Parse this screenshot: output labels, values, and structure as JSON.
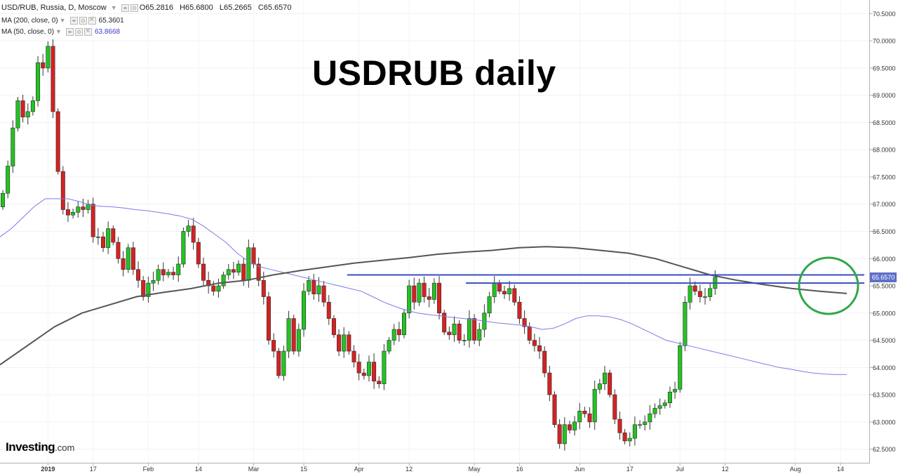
{
  "header": {
    "symbol": "USD/RUB, Russia, D, Moscow",
    "open": "O65.2816",
    "high": "H65.6800",
    "low": "L65.2665",
    "close": "C65.6570",
    "ma200_label": "MA (200, close, 0)",
    "ma200_value": "65.3601",
    "ma50_label": "MA (50, close, 0)",
    "ma50_value": "63.8668"
  },
  "title": "USDRUB daily",
  "logo": {
    "brand": "Investing",
    "domain": ".com"
  },
  "price_badge": "65.6570",
  "colors": {
    "up": "#22c322",
    "down": "#d42222",
    "ma200": "#555555",
    "ma50": "#7b7bea",
    "resistance": "#3a4cc0",
    "circle": "#2ea84a",
    "badge": "#5f6fc9"
  },
  "chart_data": {
    "type": "candlestick",
    "title": "USDRUB daily",
    "ylim": [
      62.25,
      70.75
    ],
    "y_ticks": [
      "62.5000",
      "63.0000",
      "63.5000",
      "64.0000",
      "64.5000",
      "65.0000",
      "65.5000",
      "66.0000",
      "66.5000",
      "67.0000",
      "67.5000",
      "68.0000",
      "68.5000",
      "69.0000",
      "69.5000",
      "70.0000",
      "70.5000"
    ],
    "x_ticks": [
      {
        "i": 9,
        "label": "2019",
        "bold": true
      },
      {
        "i": 18,
        "label": "17"
      },
      {
        "i": 29,
        "label": "Feb"
      },
      {
        "i": 39,
        "label": "14"
      },
      {
        "i": 50,
        "label": "Mar"
      },
      {
        "i": 60,
        "label": "15"
      },
      {
        "i": 71,
        "label": "Apr"
      },
      {
        "i": 81,
        "label": "12"
      },
      {
        "i": 94,
        "label": "May"
      },
      {
        "i": 103,
        "label": "16"
      },
      {
        "i": 115,
        "label": "Jun"
      },
      {
        "i": 125,
        "label": "17"
      },
      {
        "i": 135,
        "label": "Jul"
      },
      {
        "i": 144,
        "label": "12"
      },
      {
        "i": 158,
        "label": "Aug"
      },
      {
        "i": 167,
        "label": "14"
      }
    ],
    "closes": [
      67.2,
      67.7,
      68.4,
      68.9,
      68.6,
      68.7,
      68.9,
      69.6,
      69.5,
      69.9,
      68.7,
      67.6,
      66.9,
      66.8,
      66.85,
      66.95,
      66.9,
      67.0,
      66.4,
      66.4,
      66.2,
      66.55,
      66.3,
      66.0,
      65.8,
      66.2,
      65.8,
      65.6,
      65.3,
      65.55,
      65.6,
      65.8,
      65.7,
      65.75,
      65.7,
      65.9,
      66.5,
      66.6,
      66.3,
      65.9,
      65.6,
      65.5,
      65.4,
      65.5,
      65.7,
      65.8,
      65.75,
      65.9,
      65.6,
      66.2,
      65.9,
      65.6,
      65.3,
      64.5,
      64.3,
      63.85,
      64.3,
      64.9,
      64.3,
      64.7,
      65.4,
      65.6,
      65.35,
      65.5,
      65.2,
      64.9,
      64.6,
      64.3,
      64.6,
      64.3,
      64.1,
      63.9,
      63.85,
      64.1,
      63.75,
      63.7,
      64.3,
      64.5,
      64.7,
      64.6,
      65.0,
      65.5,
      65.2,
      65.55,
      65.3,
      65.25,
      65.55,
      65.0,
      64.65,
      64.6,
      64.8,
      64.5,
      64.5,
      64.9,
      64.5,
      64.7,
      65.0,
      65.3,
      65.55,
      65.4,
      65.35,
      65.45,
      65.2,
      64.9,
      64.75,
      64.5,
      64.4,
      64.3,
      63.9,
      63.5,
      62.95,
      62.6,
      62.95,
      62.85,
      63.0,
      63.2,
      63.15,
      63.0,
      63.6,
      63.7,
      63.9,
      63.5,
      63.05,
      62.8,
      62.65,
      62.7,
      62.95,
      62.95,
      63.0,
      63.15,
      63.25,
      63.3,
      63.35,
      63.55,
      63.6,
      64.4,
      65.2,
      65.5,
      65.4,
      65.3,
      65.3,
      65.45,
      65.657
    ],
    "ma50": [
      66.4,
      66.55,
      66.75,
      66.95,
      67.1,
      67.1,
      67.1,
      67.05,
      66.98,
      66.96,
      66.95,
      66.93,
      66.9,
      66.88,
      66.85,
      66.82,
      66.78,
      66.72,
      66.6,
      66.45,
      66.3,
      66.1,
      65.95,
      65.85,
      65.8,
      65.75,
      65.7,
      65.65,
      65.6,
      65.55,
      65.5,
      65.45,
      65.4,
      65.3,
      65.2,
      65.12,
      65.05,
      65.0,
      64.97,
      64.95,
      64.92,
      64.9,
      64.88,
      64.85,
      64.82,
      64.8,
      64.78,
      64.75,
      64.7,
      64.72,
      64.8,
      64.9,
      64.95,
      64.95,
      64.93,
      64.88,
      64.8,
      64.7,
      64.6,
      64.5,
      64.45,
      64.4,
      64.35,
      64.3,
      64.25,
      64.2,
      64.15,
      64.1,
      64.05,
      64.0,
      63.97,
      63.93,
      63.9,
      63.88,
      63.87,
      63.87
    ],
    "ma200": [
      64.05,
      64.4,
      64.75,
      65.0,
      65.15,
      65.3,
      65.38,
      65.45,
      65.55,
      65.6,
      65.7,
      65.78,
      65.85,
      65.92,
      65.97,
      66.02,
      66.08,
      66.12,
      66.15,
      66.2,
      66.22,
      66.2,
      66.15,
      66.1,
      66.0,
      65.85,
      65.7,
      65.6,
      65.52,
      65.45,
      65.4,
      65.36
    ],
    "resistance": [
      65.7,
      65.55
    ],
    "last_price": 65.657
  }
}
